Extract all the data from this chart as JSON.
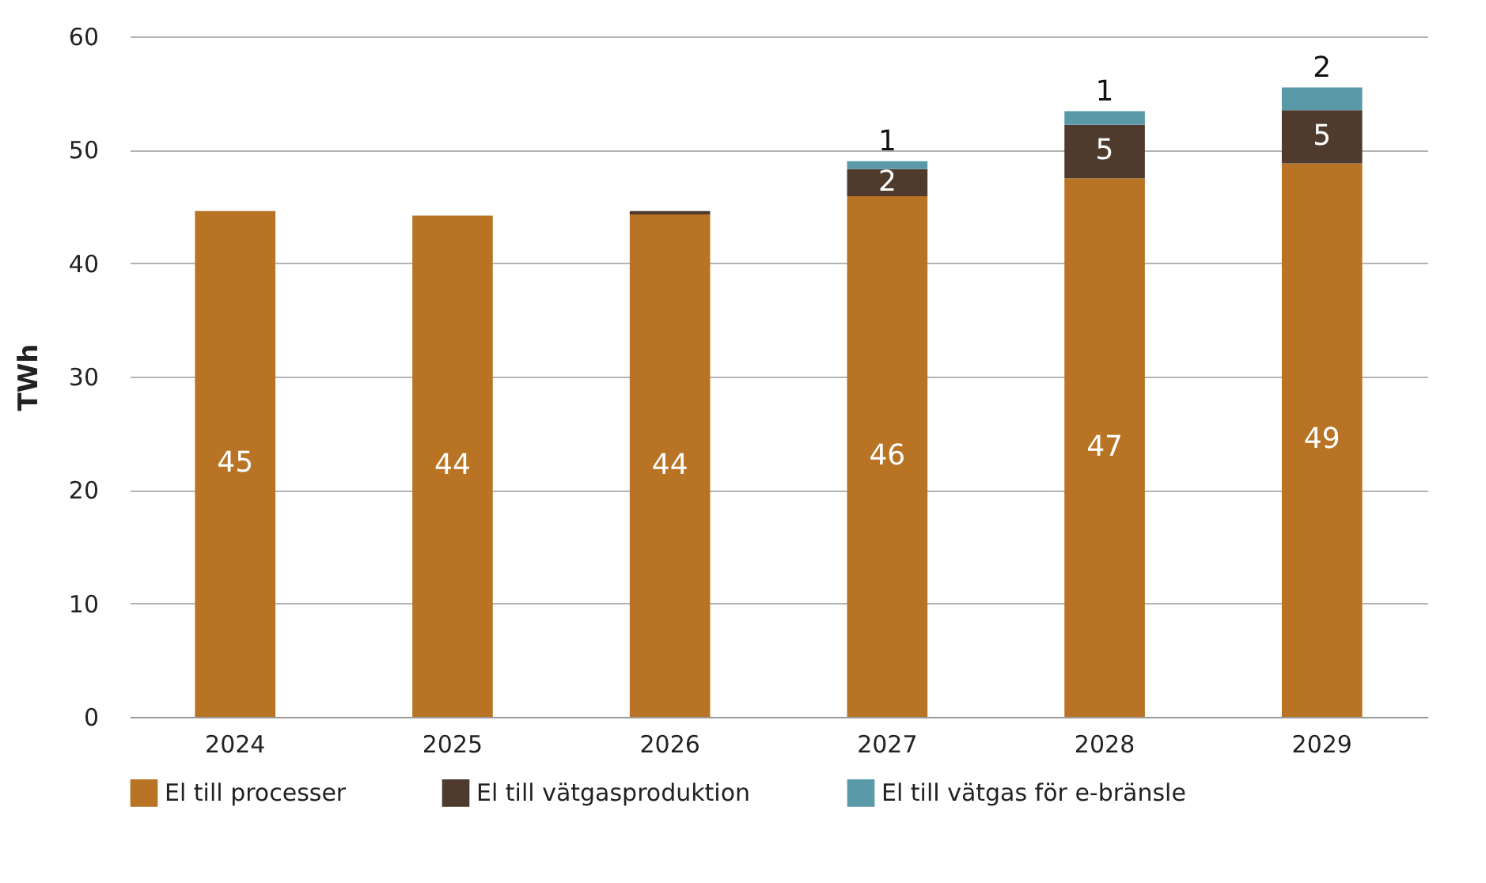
{
  "chart_data": {
    "type": "bar",
    "stacked": true,
    "ylabel": "TWh",
    "categories": [
      "2024",
      "2025",
      "2026",
      "2027",
      "2028",
      "2029"
    ],
    "series": [
      {
        "name": "El till processer",
        "color": "#b87424",
        "values": [
          44.6,
          44.2,
          44.3,
          45.9,
          47.5,
          48.8
        ],
        "value_labels": [
          "45",
          "44",
          "44",
          "46",
          "47",
          "49"
        ]
      },
      {
        "name": "El till vätgasproduktion",
        "color": "#4e3b2e",
        "values": [
          0,
          0,
          0.3,
          2.4,
          4.7,
          4.7
        ],
        "value_labels": [
          null,
          null,
          null,
          "2",
          "5",
          "5"
        ]
      },
      {
        "name": "El till vätgas för e-bränsle",
        "color": "#5a9aa8",
        "values": [
          0,
          0,
          0,
          0.7,
          1.2,
          2.0
        ],
        "value_labels": [
          null,
          null,
          null,
          "1",
          "1",
          "2"
        ]
      }
    ],
    "ylim": [
      0,
      60
    ],
    "yticks": [
      0,
      10,
      20,
      30,
      40,
      50,
      60
    ],
    "grid": "y",
    "legend": "bottom"
  }
}
